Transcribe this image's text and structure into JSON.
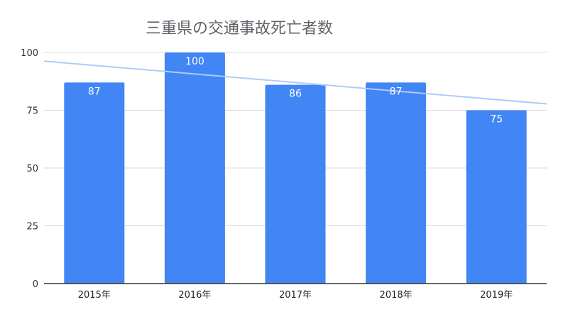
{
  "chart_data": {
    "type": "bar",
    "title": "三重県の交通事故死亡者数",
    "categories": [
      "2015年",
      "2016年",
      "2017年",
      "2018年",
      "2019年"
    ],
    "values": [
      87,
      100,
      86,
      87,
      75
    ],
    "ylim": [
      0,
      100
    ],
    "yticks": [
      0,
      25,
      50,
      75,
      100
    ],
    "grid": true,
    "legend": "none",
    "trendline": {
      "type": "linear",
      "color": "#aecbfa"
    },
    "colors": {
      "bar": "#4285f4",
      "grid": "#d9d9d9",
      "axis": "#333333",
      "label": "#ffffff"
    }
  }
}
